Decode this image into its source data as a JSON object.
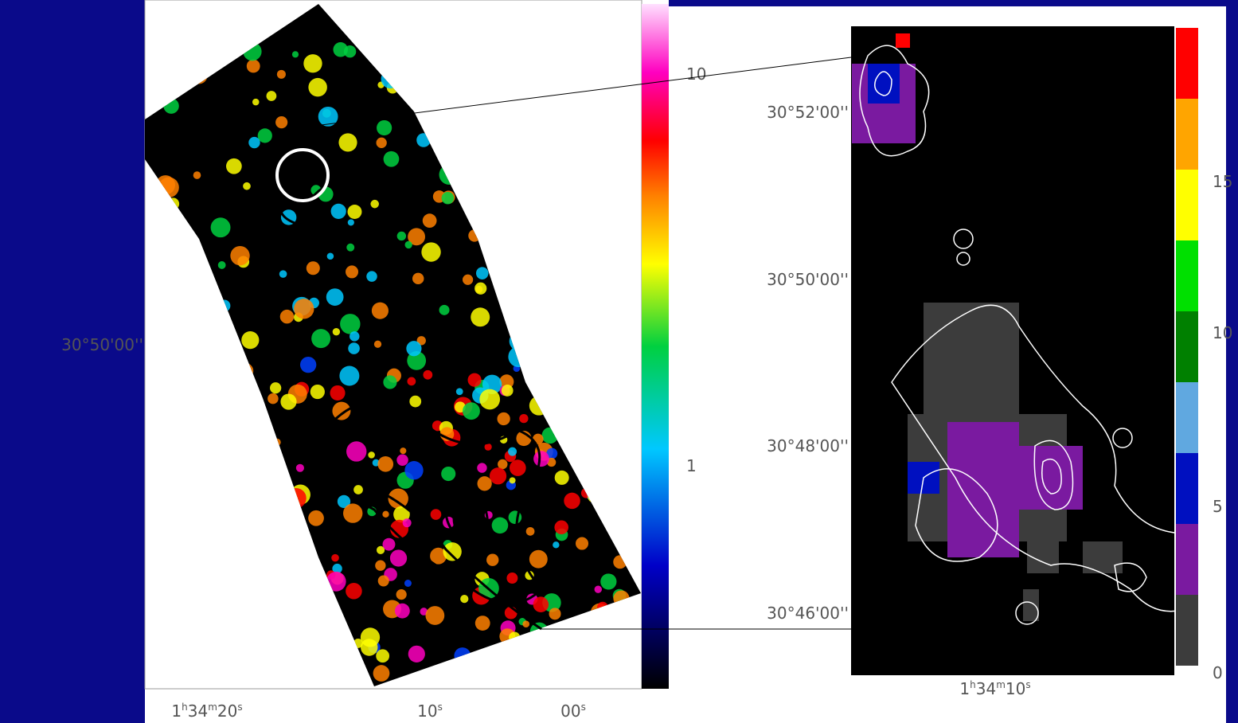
{
  "left_panel": {
    "y_label": "30°50'00''",
    "x_labels": [
      [
        "1",
        "h",
        "34",
        "m",
        "20",
        "s"
      ],
      [
        "10",
        "s"
      ],
      [
        "00",
        "s"
      ]
    ],
    "colorbar_labels": [
      "10",
      "1"
    ]
  },
  "right_panel": {
    "y_labels": [
      "30°52'00''",
      "30°50'00''",
      "30°48'00''",
      "30°46'00''"
    ],
    "x_label": [
      "1",
      "h",
      "34",
      "m",
      "10",
      "s"
    ],
    "colorbar_labels": [
      "15",
      "10",
      "5",
      "0"
    ]
  }
}
